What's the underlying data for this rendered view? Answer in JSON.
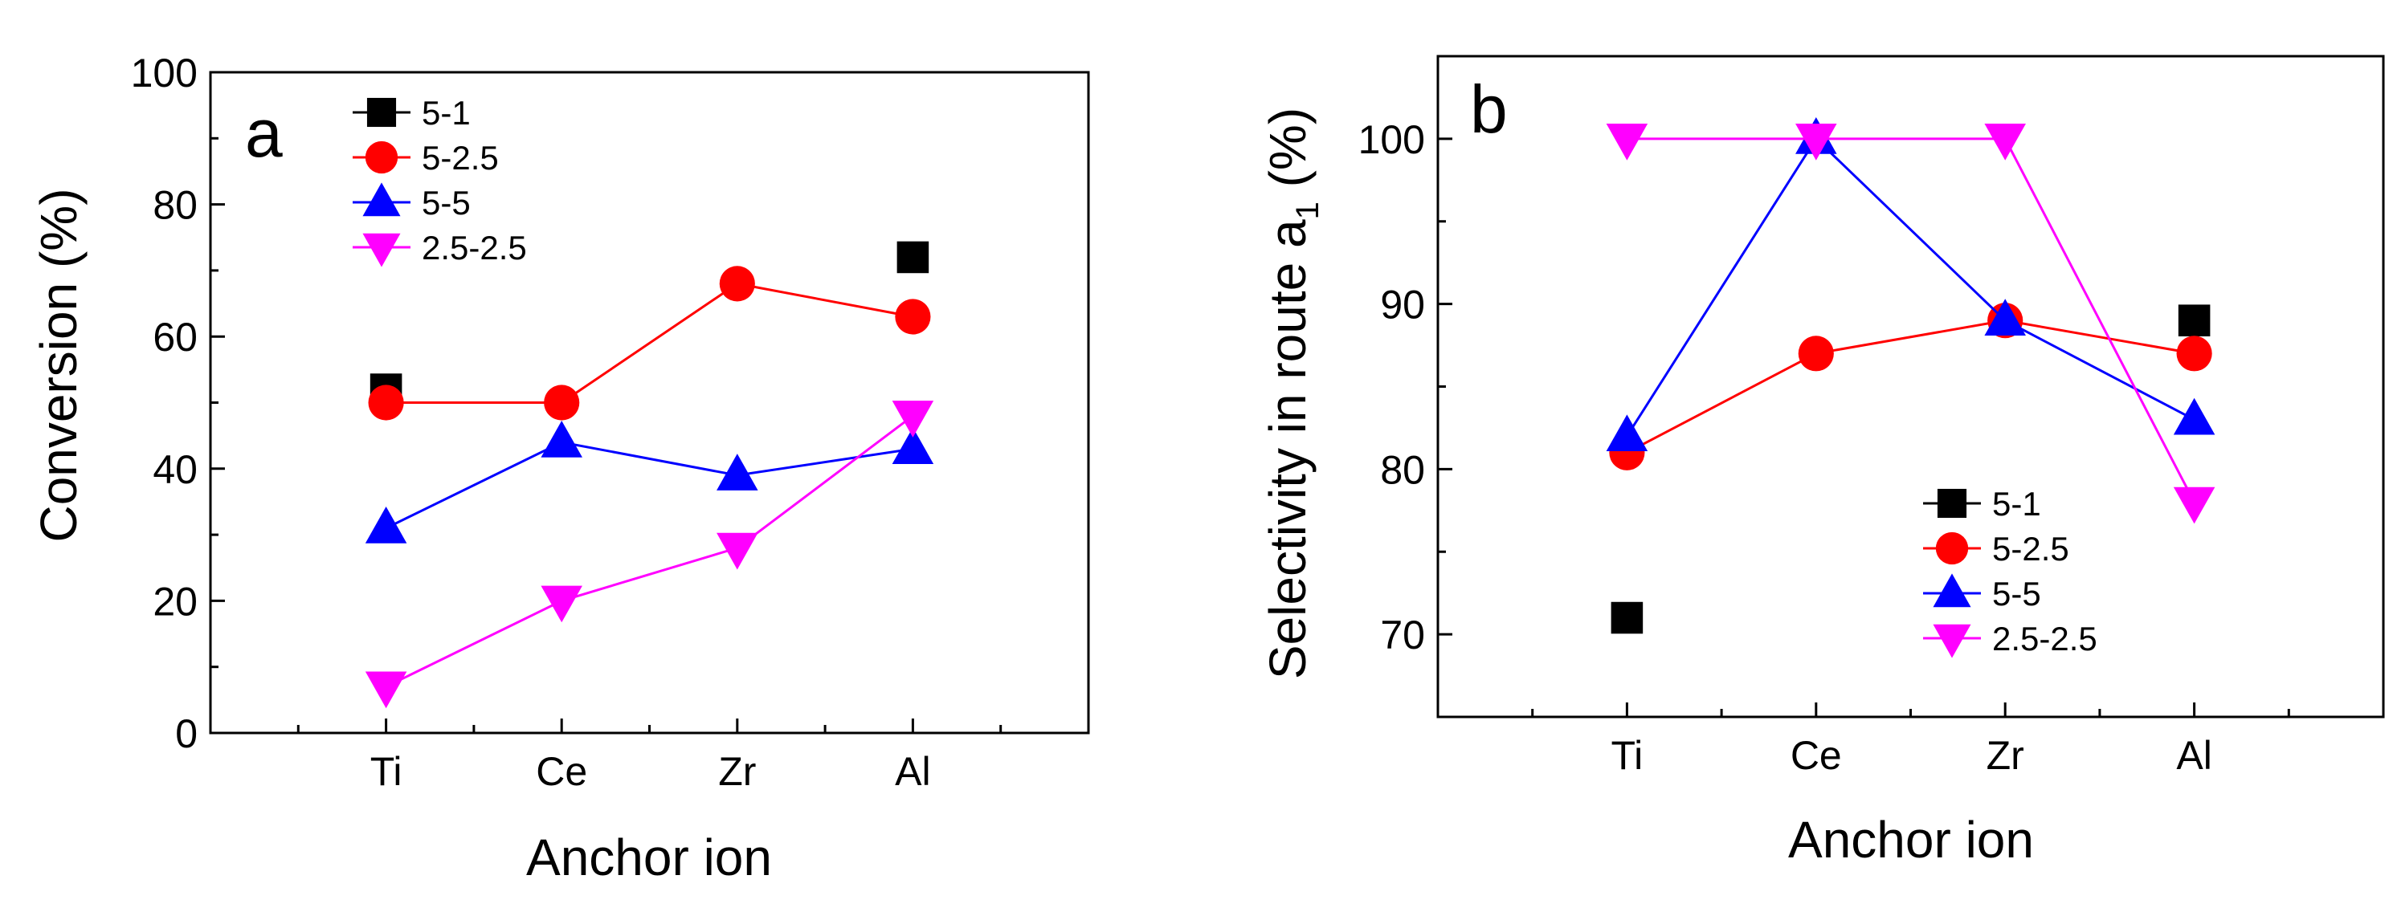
{
  "chart_data": [
    {
      "panel": "a",
      "type": "line",
      "title": "",
      "xlabel": "Anchor ion",
      "ylabel": "Conversion (%)",
      "categories": [
        "Ti",
        "Ce",
        "Zr",
        "Al"
      ],
      "ylim": [
        0,
        100
      ],
      "yticks": [
        0,
        20,
        40,
        60,
        80,
        100
      ],
      "legend_position": "top-left",
      "series": [
        {
          "name": "5-1",
          "marker": "square",
          "color": "#000000",
          "connected": false,
          "values": [
            52,
            null,
            null,
            72
          ]
        },
        {
          "name": "5-2.5",
          "marker": "circle",
          "color": "#ff0000",
          "connected": true,
          "values": [
            50,
            50,
            68,
            63
          ]
        },
        {
          "name": "5-5",
          "marker": "triangle-up",
          "color": "#0000ff",
          "connected": true,
          "values": [
            31,
            44,
            39,
            43
          ]
        },
        {
          "name": "2.5-2.5",
          "marker": "triangle-down",
          "color": "#ff00ff",
          "connected": true,
          "values": [
            7,
            20,
            28,
            48
          ]
        }
      ]
    },
    {
      "panel": "b",
      "type": "line",
      "title": "",
      "xlabel": "Anchor ion",
      "ylabel": "Selectivity in route a",
      "ylabel_subscript": "1",
      "ylabel_suffix": " (%)",
      "categories": [
        "Ti",
        "Ce",
        "Zr",
        "Al"
      ],
      "ylim": [
        65,
        105
      ],
      "yticks": [
        70,
        80,
        90,
        100
      ],
      "legend_position": "bottom-right",
      "series": [
        {
          "name": "5-1",
          "marker": "square",
          "color": "#000000",
          "connected": false,
          "values": [
            71,
            null,
            null,
            89
          ]
        },
        {
          "name": "5-2.5",
          "marker": "circle",
          "color": "#ff0000",
          "connected": true,
          "values": [
            81,
            87,
            89,
            87
          ]
        },
        {
          "name": "5-5",
          "marker": "triangle-up",
          "color": "#0000ff",
          "connected": true,
          "values": [
            82,
            100,
            89,
            83
          ]
        },
        {
          "name": "2.5-2.5",
          "marker": "triangle-down",
          "color": "#ff00ff",
          "connected": true,
          "values": [
            100,
            100,
            100,
            78
          ]
        }
      ]
    }
  ]
}
